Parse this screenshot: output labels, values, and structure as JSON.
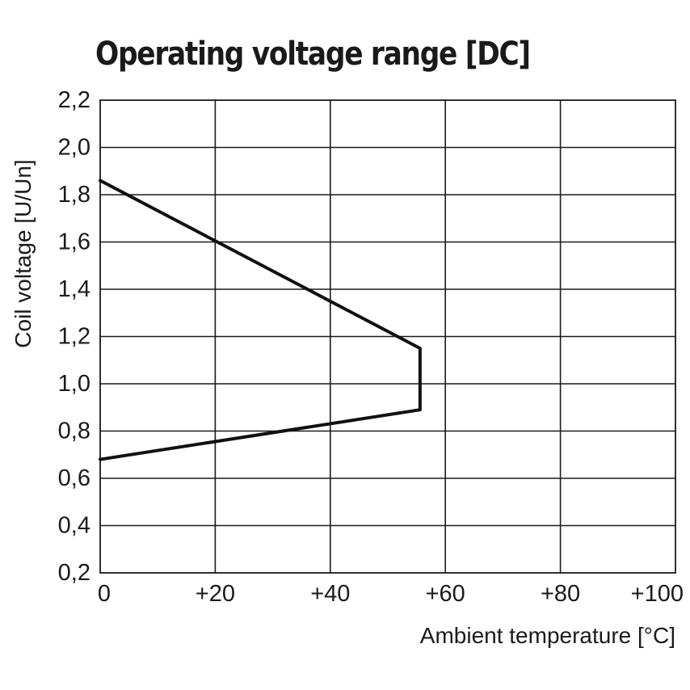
{
  "chart_data": {
    "type": "line",
    "title": "Operating voltage range [DC]",
    "xlabel": "Ambient temperature [°C]",
    "ylabel": "Coil voltage [U/Un]",
    "xlim": [
      0,
      100
    ],
    "ylim": [
      0.2,
      2.2
    ],
    "x_ticks": [
      0,
      20,
      40,
      60,
      80,
      100
    ],
    "x_tick_labels": [
      "0",
      "+20",
      "+40",
      "+60",
      "+80",
      "+100"
    ],
    "y_ticks": [
      0.2,
      0.4,
      0.6,
      0.8,
      1.0,
      1.2,
      1.4,
      1.6,
      1.8,
      2.0,
      2.2
    ],
    "y_tick_labels": [
      "0,2",
      "0,4",
      "0,6",
      "0,8",
      "1,0",
      "1,2",
      "1,4",
      "1,6",
      "1,8",
      "2,0",
      "2,2"
    ],
    "grid": true,
    "series": [
      {
        "x": [
          0,
          55.6,
          55.6,
          0
        ],
        "y": [
          1.86,
          1.15,
          0.89,
          0.68
        ]
      }
    ]
  }
}
